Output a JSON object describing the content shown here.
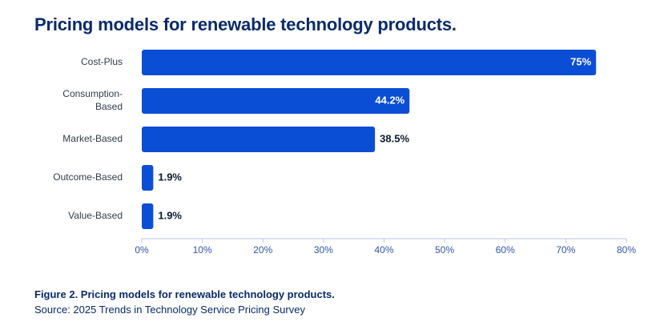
{
  "title": "Pricing models for renewable technology products.",
  "caption": "Figure 2. Pricing models for renewable technology products.",
  "source": "Source: 2025 Trends in Technology Service Pricing Survey",
  "colors": {
    "bar": "#0b4ed6",
    "title": "#0a2a6b",
    "axis": "#b8c6e6",
    "tick_text": "#3355aa",
    "label_inside": "#ffffff",
    "label_outside": "#0a1a33"
  },
  "chart_data": {
    "type": "bar",
    "orientation": "horizontal",
    "categories": [
      [
        "Cost-Plus"
      ],
      [
        "Consumption-",
        "Based"
      ],
      [
        "Market-Based"
      ],
      [
        "Outcome-Based"
      ],
      [
        "Value-Based"
      ]
    ],
    "values": [
      75,
      44.2,
      38.5,
      1.9,
      1.9
    ],
    "value_labels": [
      "75%",
      "44.2%",
      "38.5%",
      "1.9%",
      "1.9%"
    ],
    "xlim": [
      0,
      80
    ],
    "xticks": [
      0,
      10,
      20,
      30,
      40,
      50,
      60,
      70,
      80
    ],
    "xtick_labels": [
      "0%",
      "10%",
      "20%",
      "30%",
      "40%",
      "50%",
      "60%",
      "70%",
      "80%"
    ],
    "grid": false
  }
}
